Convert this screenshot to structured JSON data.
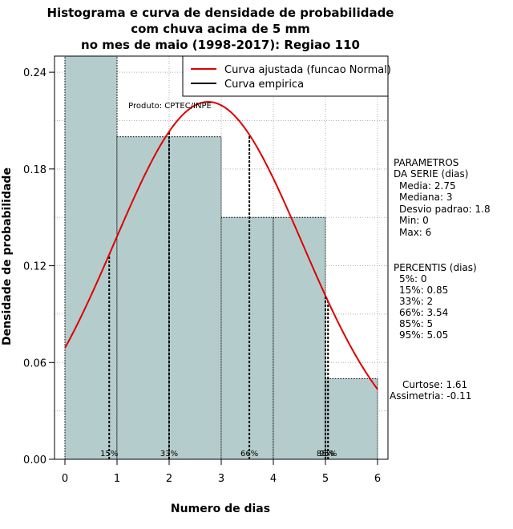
{
  "chart_data": {
    "type": "bar",
    "title_lines": [
      "Histograma e curva de densidade de probabilidade",
      "com chuva acima de 5 mm",
      "no mes de maio (1998-2017): Regiao 110"
    ],
    "xlabel": "Numero de dias",
    "ylabel": "Densidade de probabilidade",
    "xlim": [
      -0.2,
      6.2
    ],
    "ylim": [
      0,
      0.25
    ],
    "x_ticks": [
      0,
      1,
      2,
      3,
      4,
      5,
      6
    ],
    "y_ticks": [
      0.0,
      0.06,
      0.12,
      0.18,
      0.24
    ],
    "y_tick_labels": [
      "0.00",
      "0.06",
      "0.12",
      "0.18",
      "0.24"
    ],
    "grid": true,
    "bins": [
      {
        "from": 0,
        "to": 1,
        "density": 0.25
      },
      {
        "from": 1,
        "to": 2,
        "density": 0.2
      },
      {
        "from": 2,
        "to": 3,
        "density": 0.2
      },
      {
        "from": 3,
        "to": 4,
        "density": 0.15
      },
      {
        "from": 4,
        "to": 5,
        "density": 0.15
      },
      {
        "from": 5,
        "to": 6,
        "density": 0.05
      }
    ],
    "normal_curve": {
      "mean": 2.75,
      "sd": 1.8,
      "x_range": [
        0,
        6
      ]
    },
    "percentile_lines": [
      {
        "label": "15%",
        "x": 0.85
      },
      {
        "label": "33%",
        "x": 2
      },
      {
        "label": "66%",
        "x": 3.54
      },
      {
        "label": "85%",
        "x": 5
      },
      {
        "label": "95%",
        "x": 5.05
      }
    ],
    "legend": {
      "position": "top-right",
      "entries": [
        {
          "label": "Curva ajustada (funcao Normal)",
          "color": "#dd0000"
        },
        {
          "label": "Curva empirica",
          "color": "#000000"
        }
      ]
    },
    "credit": "Produto: CPTEC/INPE",
    "side_blocks": {
      "parametros": [
        "PARAMETROS",
        "DA SERIE (dias)",
        "Media: 2.75",
        "Mediana: 3",
        "Desvio padrao: 1.8",
        "Min: 0",
        "Max: 6"
      ],
      "percentis": [
        "PERCENTIS (dias)",
        "5%: 0",
        "15%: 0.85",
        "33%: 2",
        "66%: 3.54",
        "85%: 5",
        "95%: 5.05"
      ],
      "shape": [
        "Curtose: 1.61",
        "Assimetria: -0.11"
      ]
    },
    "colors": {
      "bar_fill": "#b4cccc",
      "bar_edge": "#000000",
      "curve": "#dd0000",
      "grid": "#b0b0b0",
      "axis": "#000000"
    }
  }
}
